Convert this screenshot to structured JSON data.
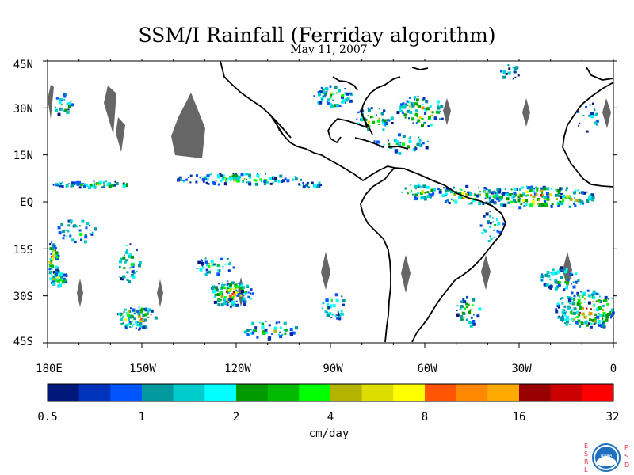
{
  "title": "SSM/I Rainfall (Ferriday algorithm)",
  "subtitle": "May 11, 2007",
  "lat_labels": [
    "45N",
    "30N",
    "15N",
    "EQ",
    "15S",
    "30S",
    "45S"
  ],
  "lon_labels": [
    "180E",
    "150W",
    "120W",
    "90W",
    "60W",
    "30W",
    "0"
  ],
  "colorbar": {
    "tick_labels": [
      "0.5",
      "1",
      "2",
      "4",
      "8",
      "16",
      "32"
    ],
    "unit": "cm/day",
    "colors": [
      "#00187a",
      "#0033bb",
      "#0055ff",
      "#00999e",
      "#00cccc",
      "#00ffff",
      "#009900",
      "#00bb00",
      "#00ff00",
      "#b4b400",
      "#dddd00",
      "#ffff00",
      "#ff5500",
      "#ff8800",
      "#ffaa00",
      "#990000",
      "#cc0000",
      "#ff0000"
    ]
  },
  "logo": {
    "left_letters": [
      "E",
      "S",
      "R",
      "L"
    ],
    "right_letters": [
      "P",
      "S",
      "D"
    ],
    "center_text": "NOAA",
    "letter_color": "#dd3344",
    "badge_color": "#1f6fbf"
  }
}
